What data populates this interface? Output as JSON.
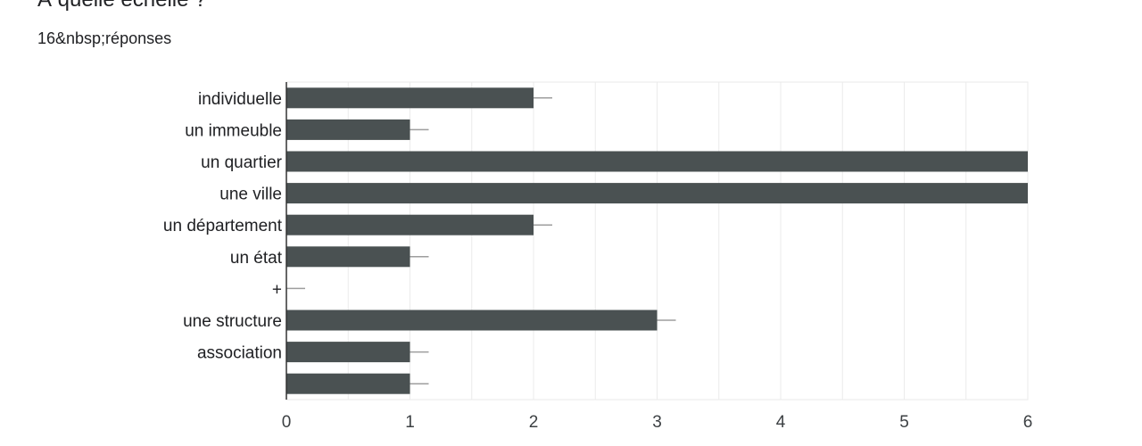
{
  "question": {
    "title": "À quelle échelle ?",
    "responses": "16&nbsp;réponses"
  },
  "colors": {
    "bar": "#4a5152",
    "grid": "#ebebeb",
    "axis": "#333333",
    "whisker": "#9e9e9e"
  },
  "chart_data": {
    "type": "bar",
    "orientation": "horizontal",
    "categories": [
      "individuelle",
      "un immeuble",
      "un quartier",
      "une ville",
      "un département",
      "un état",
      "+",
      "une structure",
      "association",
      ""
    ],
    "values": [
      2,
      1,
      6,
      6,
      2,
      1,
      0,
      3,
      1,
      1
    ],
    "xlim": [
      0,
      6
    ],
    "xticks": [
      0,
      1,
      2,
      3,
      4,
      5,
      6
    ],
    "grid": true,
    "title": "",
    "xlabel": "",
    "ylabel": ""
  }
}
